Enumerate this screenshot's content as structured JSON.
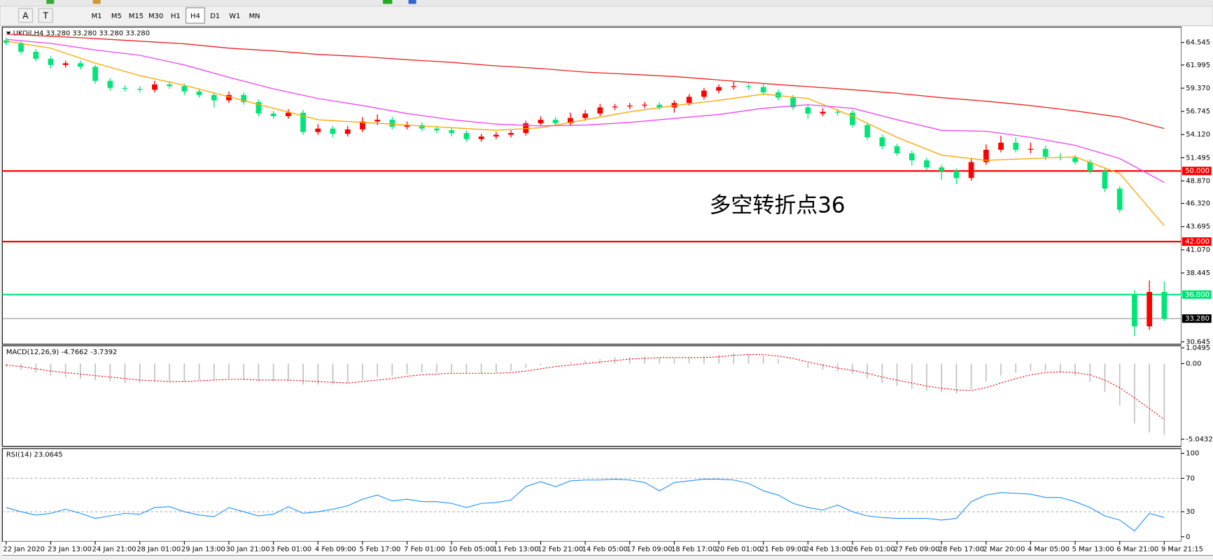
{
  "toolbar": {
    "tools": [
      "A",
      "T"
    ],
    "timeframes": [
      "M1",
      "M5",
      "M15",
      "M30",
      "H1",
      "H4",
      "D1",
      "W1",
      "MN"
    ]
  },
  "chart_data": [
    {
      "type": "candlestick",
      "title": "UKOil,H4  33.280 33.280 33.280 33.280",
      "annotation": "多空转折点36",
      "up_color": "#ff0000",
      "down_color": "#00e676",
      "categories": [
        "22 Jan 2020",
        null,
        null,
        "23 Jan 13:00",
        null,
        null,
        "24 Jan 21:00",
        null,
        null,
        "28 Jan 01:00",
        null,
        null,
        "29 Jan 13:00",
        null,
        null,
        "30 Jan 21:00",
        null,
        null,
        "3 Feb 01:00",
        null,
        null,
        "4 Feb 09:00",
        null,
        null,
        "5 Feb 17:00",
        null,
        null,
        "7 Feb 01:00",
        null,
        null,
        "10 Feb 05:00",
        null,
        null,
        "11 Feb 13:00",
        null,
        null,
        "12 Feb 21:00",
        null,
        null,
        "14 Feb 05:00",
        null,
        null,
        "17 Feb 09:00",
        null,
        null,
        "18 Feb 17:00",
        null,
        null,
        "20 Feb 01:00",
        null,
        null,
        "21 Feb 09:00",
        null,
        null,
        "24 Feb 13:00",
        null,
        null,
        "26 Feb 01:00",
        null,
        null,
        "27 Feb 09:00",
        null,
        null,
        "28 Feb 17:00",
        null,
        null,
        "2 Mar 20:00",
        null,
        null,
        "4 Mar 05:00",
        null,
        null,
        "5 Mar 13:00",
        null,
        null,
        "6 Mar 21:00",
        null,
        null,
        "9 Mar 21:15"
      ],
      "open": [
        64.8,
        64.5,
        63.5,
        62.7,
        62.0,
        62.2,
        61.8,
        60.2,
        59.4,
        59.3,
        59.2,
        59.8,
        59.6,
        59.0,
        58.6,
        58.0,
        58.6,
        57.8,
        56.5,
        56.2,
        56.6,
        54.4,
        54.8,
        54.2,
        54.7,
        55.6,
        55.8,
        55.0,
        55.2,
        54.8,
        54.6,
        54.3,
        53.6,
        53.9,
        54.1,
        54.3,
        55.4,
        55.8,
        55.4,
        56.0,
        56.5,
        57.2,
        57.3,
        57.4,
        57.5,
        57.2,
        57.7,
        58.4,
        59.1,
        59.5,
        59.6,
        59.5,
        58.9,
        58.3,
        57.2,
        56.5,
        56.7,
        56.6,
        55.2,
        53.8,
        52.8,
        52.0,
        51.2,
        50.4,
        50.0,
        49.2,
        51.0,
        52.4,
        53.2,
        52.4,
        52.5,
        51.6,
        51.5,
        51.0,
        50.0,
        48.0,
        36.0,
        32.4,
        36.3
      ],
      "high": [
        65.1,
        64.8,
        63.8,
        63.0,
        62.5,
        62.5,
        62.0,
        60.5,
        59.7,
        59.6,
        60.2,
        60.1,
        59.9,
        59.3,
        58.9,
        59.0,
        58.9,
        58.1,
        56.8,
        57.0,
        56.9,
        55.3,
        55.1,
        55.1,
        56.1,
        56.4,
        56.1,
        55.6,
        55.5,
        55.1,
        54.9,
        54.6,
        54.2,
        54.4,
        54.6,
        55.7,
        56.2,
        56.1,
        56.6,
        56.9,
        57.6,
        57.6,
        57.7,
        57.8,
        57.8,
        58.0,
        58.7,
        59.4,
        59.8,
        60.1,
        59.9,
        59.8,
        59.2,
        58.6,
        57.5,
        57.1,
        57.0,
        56.9,
        55.5,
        54.1,
        53.1,
        52.3,
        51.5,
        50.7,
        50.3,
        51.4,
        53.0,
        54.0,
        53.8,
        53.2,
        52.9,
        52.0,
        51.8,
        51.3,
        50.3,
        48.3,
        36.5,
        37.6,
        37.5
      ],
      "low": [
        64.2,
        63.2,
        62.4,
        61.6,
        61.7,
        61.5,
        59.9,
        59.1,
        59.0,
        58.9,
        58.9,
        59.3,
        58.6,
        58.3,
        57.2,
        57.7,
        57.5,
        56.2,
        55.9,
        55.9,
        54.1,
        54.1,
        53.8,
        53.9,
        54.4,
        55.2,
        54.7,
        54.7,
        54.5,
        54.3,
        53.9,
        53.3,
        53.3,
        53.6,
        53.8,
        54.0,
        55.1,
        55.1,
        55.1,
        55.7,
        56.2,
        56.9,
        57.0,
        57.1,
        56.9,
        56.6,
        57.4,
        58.1,
        58.8,
        59.2,
        59.2,
        58.6,
        58.0,
        56.9,
        55.9,
        56.2,
        56.3,
        54.9,
        53.5,
        52.5,
        51.7,
        50.6,
        50.1,
        49.0,
        48.5,
        48.9,
        50.7,
        52.1,
        52.1,
        52.0,
        51.2,
        51.2,
        50.7,
        49.7,
        47.6,
        45.3,
        31.3,
        32.0,
        33.0
      ],
      "close": [
        64.5,
        63.5,
        62.7,
        62.0,
        62.2,
        61.8,
        60.2,
        59.4,
        59.3,
        59.2,
        59.8,
        59.6,
        59.0,
        58.6,
        58.0,
        58.6,
        57.8,
        56.5,
        56.2,
        56.6,
        54.4,
        54.8,
        54.2,
        54.7,
        55.6,
        55.8,
        55.0,
        55.2,
        54.8,
        54.6,
        54.3,
        53.6,
        53.9,
        54.1,
        54.3,
        55.4,
        55.8,
        55.4,
        56.0,
        56.5,
        57.2,
        57.3,
        57.4,
        57.5,
        57.2,
        57.7,
        58.4,
        59.1,
        59.5,
        59.6,
        59.5,
        58.9,
        58.3,
        57.2,
        56.5,
        56.7,
        56.6,
        55.2,
        53.8,
        52.8,
        52.0,
        51.2,
        50.4,
        50.0,
        49.2,
        51.0,
        52.4,
        53.2,
        52.4,
        52.5,
        51.6,
        51.5,
        51.0,
        50.0,
        48.0,
        45.6,
        32.4,
        36.3,
        33.28
      ],
      "ma_x": [
        0,
        3,
        6,
        9,
        12,
        15,
        18,
        21,
        24,
        27,
        30,
        33,
        36,
        39,
        42,
        45,
        48,
        51,
        54,
        57,
        60,
        63,
        66,
        69,
        72,
        75,
        78
      ],
      "moving_averages": [
        {
          "color": "#ffa500",
          "values": [
            64.7,
            63.9,
            62.2,
            60.8,
            59.7,
            58.4,
            57.1,
            55.8,
            55.5,
            55.2,
            54.9,
            54.6,
            54.9,
            55.8,
            56.7,
            57.4,
            58.0,
            58.7,
            58.2,
            56.2,
            53.8,
            51.8,
            51.2,
            51.4,
            51.6,
            49.7,
            43.8
          ]
        },
        {
          "color": "#ee44ee",
          "values": [
            64.9,
            64.45,
            63.7,
            63.1,
            62.0,
            60.6,
            59.3,
            58.2,
            57.4,
            56.5,
            55.8,
            55.3,
            55.1,
            55.2,
            55.5,
            55.95,
            56.4,
            57.1,
            57.5,
            57.1,
            55.8,
            54.6,
            54.5,
            53.8,
            52.9,
            51.4,
            48.7
          ]
        },
        {
          "color": "#ee2222",
          "values": [
            65.5,
            65.25,
            65.0,
            64.7,
            64.4,
            63.9,
            63.6,
            63.2,
            62.95,
            62.6,
            62.3,
            61.9,
            61.6,
            61.2,
            60.95,
            60.7,
            60.3,
            59.9,
            59.55,
            59.2,
            58.8,
            58.3,
            57.9,
            57.4,
            56.8,
            56.1,
            54.8
          ]
        }
      ],
      "hlines": [
        {
          "value": 50,
          "label": "50.000",
          "color": "#ff0000"
        },
        {
          "value": 42,
          "label": "42.000",
          "color": "#ff0000"
        },
        {
          "value": 36,
          "label": "36.000",
          "color": "#00e676"
        },
        {
          "value": 33.28,
          "label": "33.280",
          "color": "#000000"
        }
      ],
      "ylim": [
        30.38,
        66.12
      ],
      "yticks": [
        64.545,
        61.995,
        {
          "value": 59.37,
          "label": "59.370"
        },
        56.745,
        {
          "value": 54.12,
          "label": "54.120"
        },
        51.495,
        {
          "value": 48.87,
          "label": "48.870"
        },
        {
          "value": 46.32,
          "label": "46.320"
        },
        43.695,
        {
          "value": 41.07,
          "label": "41.070"
        },
        38.445,
        30.645
      ]
    },
    {
      "type": "macd",
      "title": "MACD(12,26,9) -4.7662 -3.7392",
      "color": "#c0c0c0",
      "signal_color": "#ee0000",
      "values": [
        -0.2,
        -0.4,
        -0.6,
        -0.8,
        -0.9,
        -1.0,
        -1.1,
        -1.2,
        -1.3,
        -1.3,
        -1.2,
        -1.2,
        -1.2,
        -1.1,
        -1.1,
        -1.0,
        -1.1,
        -1.2,
        -1.2,
        -1.2,
        -1.4,
        -1.4,
        -1.4,
        -1.3,
        -1.1,
        -0.9,
        -0.8,
        -0.7,
        -0.6,
        -0.6,
        -0.6,
        -0.7,
        -0.7,
        -0.6,
        -0.5,
        -0.3,
        -0.1,
        0.0,
        0.1,
        0.2,
        0.3,
        0.4,
        0.45,
        0.45,
        0.4,
        0.35,
        0.4,
        0.5,
        0.6,
        0.7,
        0.65,
        0.5,
        0.3,
        0.0,
        -0.3,
        -0.4,
        -0.5,
        -0.7,
        -1.0,
        -1.3,
        -1.5,
        -1.7,
        -1.8,
        -1.9,
        -2.0,
        -1.7,
        -1.2,
        -0.8,
        -0.6,
        -0.5,
        -0.5,
        -0.6,
        -0.8,
        -1.2,
        -1.9,
        -2.8,
        -4.0,
        -4.6,
        -4.7662
      ],
      "signal": [
        -0.1,
        -0.2,
        -0.35,
        -0.5,
        -0.6,
        -0.7,
        -0.8,
        -0.9,
        -1.0,
        -1.1,
        -1.15,
        -1.2,
        -1.2,
        -1.15,
        -1.1,
        -1.05,
        -1.05,
        -1.1,
        -1.1,
        -1.1,
        -1.15,
        -1.2,
        -1.25,
        -1.3,
        -1.2,
        -1.1,
        -1.0,
        -0.85,
        -0.75,
        -0.7,
        -0.65,
        -0.65,
        -0.65,
        -0.65,
        -0.6,
        -0.5,
        -0.35,
        -0.2,
        -0.1,
        0.0,
        0.1,
        0.2,
        0.3,
        0.35,
        0.4,
        0.4,
        0.4,
        0.4,
        0.45,
        0.55,
        0.6,
        0.6,
        0.5,
        0.35,
        0.1,
        -0.1,
        -0.3,
        -0.45,
        -0.65,
        -0.9,
        -1.1,
        -1.3,
        -1.5,
        -1.65,
        -1.75,
        -1.8,
        -1.6,
        -1.3,
        -1.0,
        -0.75,
        -0.6,
        -0.55,
        -0.6,
        -0.75,
        -1.1,
        -1.6,
        -2.3,
        -3.0,
        -3.7392
      ],
      "ylim": [
        -5.52,
        1.19
      ],
      "yticks": [
        1.0495,
        {
          "value": 0,
          "label": "0.00"
        },
        -5.0432
      ]
    },
    {
      "type": "rsi",
      "title": "RSI(14) 23.0645",
      "color": "#1e90ff",
      "values": [
        35,
        30,
        26,
        28,
        33,
        28,
        22,
        25,
        28,
        27,
        35,
        36,
        30,
        26,
        24,
        35,
        30,
        25,
        27,
        36,
        28,
        30,
        33,
        37,
        45,
        50,
        43,
        45,
        42,
        42,
        40,
        35,
        40,
        41,
        44,
        60,
        66,
        60,
        67,
        68,
        68,
        69,
        68,
        65,
        55,
        65,
        67,
        69,
        69,
        68,
        64,
        55,
        50,
        40,
        35,
        32,
        38,
        30,
        25,
        23,
        22,
        22,
        22,
        20,
        22,
        42,
        50,
        53,
        52,
        51,
        47,
        47,
        42,
        35,
        25,
        20,
        7,
        28,
        23.0645
      ],
      "levels": [
        70,
        30
      ],
      "ylim": [
        -5.6,
        105.6
      ],
      "yticks": [
        100,
        70,
        30,
        0
      ]
    }
  ]
}
